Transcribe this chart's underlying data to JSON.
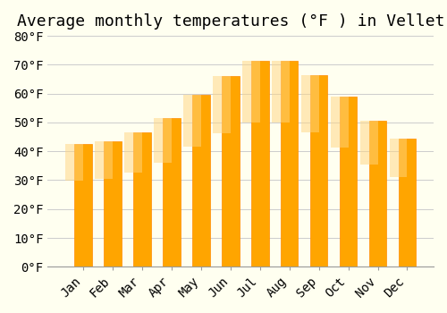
{
  "title": "Average monthly temperatures (°F ) in Velletri",
  "months": [
    "Jan",
    "Feb",
    "Mar",
    "Apr",
    "May",
    "Jun",
    "Jul",
    "Aug",
    "Sep",
    "Oct",
    "Nov",
    "Dec"
  ],
  "values": [
    42.5,
    43.5,
    46.5,
    51.5,
    59.5,
    66.0,
    71.5,
    71.5,
    66.5,
    59.0,
    50.5,
    44.5
  ],
  "bar_color": "#FFA500",
  "bar_edge_color": "#FF8C00",
  "background_color": "#FFFFF0",
  "grid_color": "#CCCCCC",
  "ylim": [
    0,
    80
  ],
  "yticks": [
    0,
    10,
    20,
    30,
    40,
    50,
    60,
    70,
    80
  ],
  "title_fontsize": 13,
  "tick_fontsize": 10,
  "font_family": "monospace"
}
